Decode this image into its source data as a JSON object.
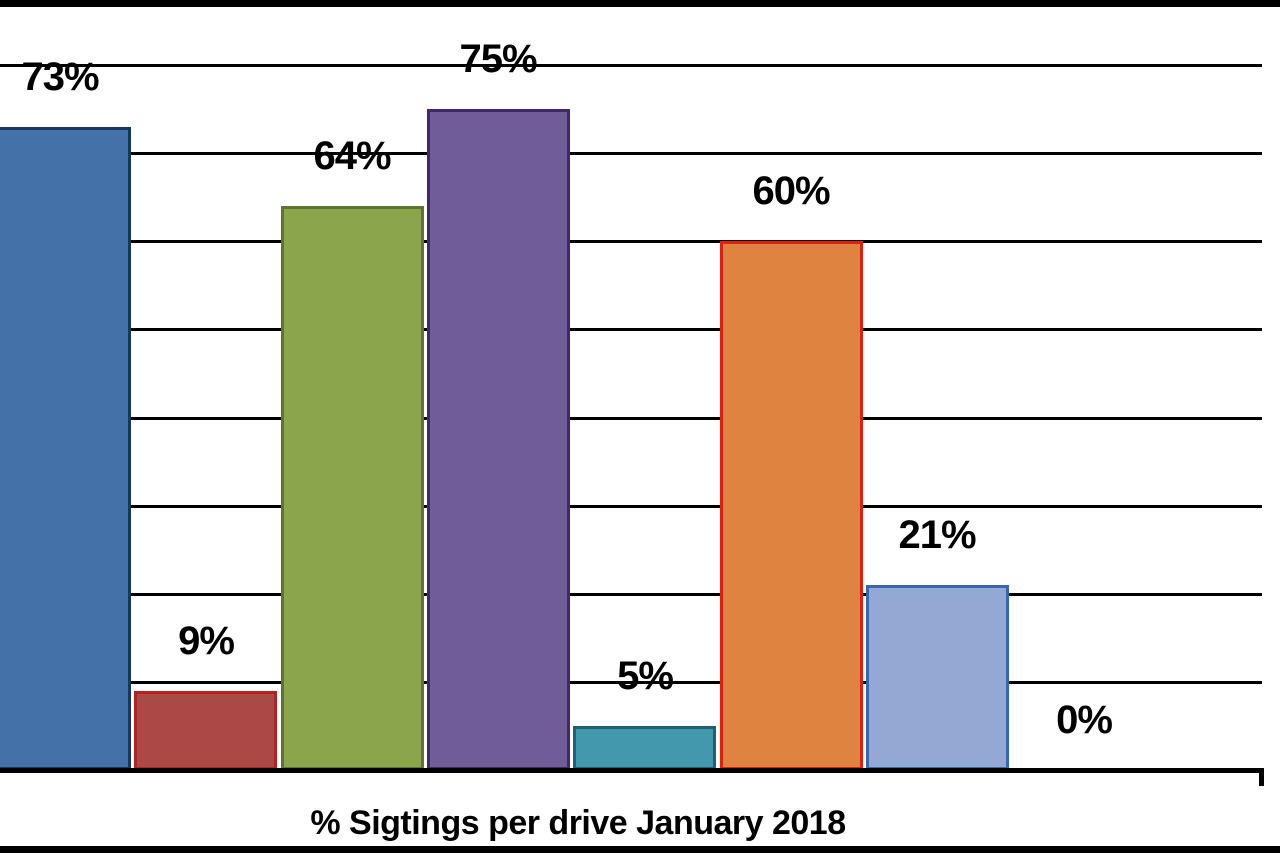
{
  "chart_data": {
    "type": "bar",
    "title": "% Sigtings per drive January 2018",
    "title_position": "bottom",
    "legend": "none",
    "grid": true,
    "y_axis": {
      "min": 0,
      "max": 80,
      "gridline_interval": 10,
      "tick_labels_visible": false,
      "unit": "percent"
    },
    "x_axis": {
      "category_labels_visible": false
    },
    "bars": [
      {
        "label": "73%",
        "value": 73,
        "fill": "#4472A8",
        "border": "#17375E"
      },
      {
        "label": "9%",
        "value": 9,
        "fill": "#AA4946",
        "border": "#B02423"
      },
      {
        "label": "64%",
        "value": 64,
        "fill": "#8AA54C",
        "border": "#5E7530"
      },
      {
        "label": "75%",
        "value": 75,
        "fill": "#705C98",
        "border": "#3F2A66"
      },
      {
        "label": "5%",
        "value": 5,
        "fill": "#4398AD",
        "border": "#1F6173"
      },
      {
        "label": "60%",
        "value": 60,
        "fill": "#DE8340",
        "border": "#E01F0C"
      },
      {
        "label": "21%",
        "value": 21,
        "fill": "#93A9D3",
        "border": "#3A66AF"
      },
      {
        "label": "0%",
        "value": 0,
        "fill": "",
        "border": ""
      }
    ],
    "colors": {
      "gridline": "#000000",
      "axis": "#000000",
      "label_text": "#000000",
      "background": "#FFFFFF"
    }
  }
}
